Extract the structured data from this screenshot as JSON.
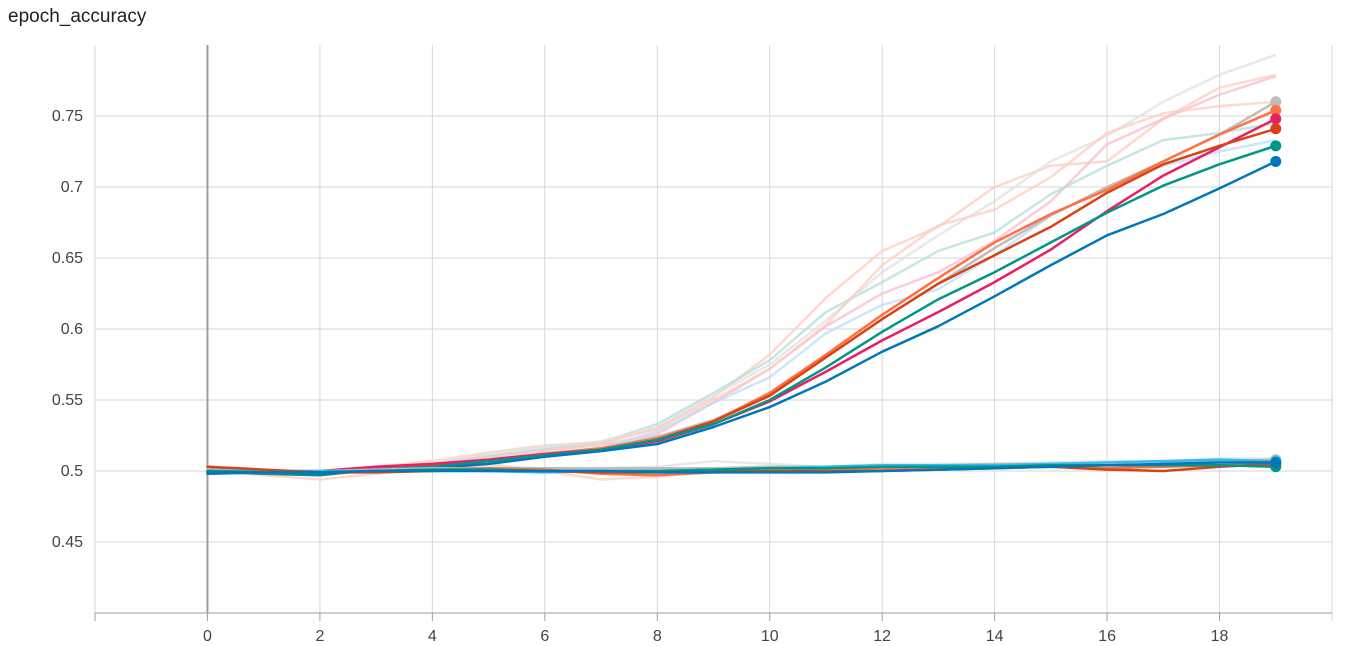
{
  "title": "epoch_accuracy",
  "chart_data": {
    "type": "line",
    "title": "epoch_accuracy",
    "xlabel": "",
    "ylabel": "",
    "xlim": [
      -2.0,
      20.0
    ],
    "ylim": [
      0.4,
      0.8
    ],
    "grid": true,
    "x_ticks": [
      0,
      2,
      4,
      6,
      8,
      10,
      12,
      14,
      16,
      18
    ],
    "x_tick_labels": [
      "0",
      "2",
      "4",
      "6",
      "8",
      "10",
      "12",
      "14",
      "16",
      "18"
    ],
    "y_ticks": [
      0.45,
      0.5,
      0.55,
      0.6,
      0.65,
      0.7,
      0.75
    ],
    "y_tick_labels": [
      "0.45",
      "0.5",
      "0.55",
      "0.6",
      "0.65",
      "0.7",
      "0.75"
    ],
    "x": [
      0,
      1,
      2,
      3,
      4,
      5,
      6,
      7,
      8,
      9,
      10,
      11,
      12,
      13,
      14,
      15,
      16,
      17,
      18,
      19
    ],
    "raw_series": [
      {
        "color": "#ffccbc",
        "values": [
          0.5,
          0.498,
          0.499,
          0.503,
          0.507,
          0.513,
          0.518,
          0.52,
          0.53,
          0.552,
          0.582,
          0.622,
          0.655,
          0.672,
          0.7,
          0.715,
          0.718,
          0.748,
          0.77,
          0.779
        ]
      },
      {
        "color": "#f8bbd0",
        "values": [
          0.499,
          0.498,
          0.5,
          0.503,
          0.505,
          0.51,
          0.515,
          0.518,
          0.526,
          0.548,
          0.572,
          0.602,
          0.625,
          0.64,
          0.662,
          0.69,
          0.73,
          0.748,
          0.765,
          0.778
        ]
      },
      {
        "color": "#b2dfdb",
        "values": [
          0.5,
          0.498,
          0.497,
          0.502,
          0.505,
          0.511,
          0.516,
          0.52,
          0.533,
          0.555,
          0.578,
          0.612,
          0.633,
          0.655,
          0.668,
          0.695,
          0.715,
          0.733,
          0.738,
          0.745
        ]
      },
      {
        "color": "#bbdefb",
        "values": [
          0.498,
          0.499,
          0.498,
          0.502,
          0.503,
          0.508,
          0.513,
          0.516,
          0.528,
          0.548,
          0.566,
          0.597,
          0.617,
          0.628,
          0.652,
          0.68,
          0.7,
          0.715,
          0.725,
          0.733
        ]
      },
      {
        "color": "#e0e0e0",
        "values": [
          0.501,
          0.499,
          0.5,
          0.501,
          0.506,
          0.512,
          0.517,
          0.521,
          0.531,
          0.553,
          0.575,
          0.606,
          0.64,
          0.666,
          0.69,
          0.718,
          0.736,
          0.76,
          0.779,
          0.793
        ]
      },
      {
        "color": "#ffccbc",
        "values": [
          0.502,
          0.499,
          0.498,
          0.502,
          0.505,
          0.509,
          0.514,
          0.519,
          0.53,
          0.55,
          0.572,
          0.603,
          0.645,
          0.673,
          0.684,
          0.707,
          0.738,
          0.752,
          0.757,
          0.76
        ]
      },
      {
        "color": "#ffccbc",
        "values": [
          0.5,
          0.497,
          0.494,
          0.498,
          0.502,
          0.505,
          0.5,
          0.494,
          0.496,
          0.5,
          0.503,
          0.503,
          0.504,
          0.504,
          0.505,
          0.505,
          0.505,
          0.504,
          0.506,
          0.506
        ]
      },
      {
        "color": "#e0e0e0",
        "values": [
          0.501,
          0.5,
          0.499,
          0.501,
          0.503,
          0.503,
          0.502,
          0.502,
          0.503,
          0.507,
          0.505,
          0.503,
          0.505,
          0.505,
          0.505,
          0.506,
          0.507,
          0.507,
          0.509,
          0.509
        ]
      }
    ],
    "series": [
      {
        "color": "#bdbdbd",
        "values": [
          0.5,
          0.499,
          0.499,
          0.502,
          0.504,
          0.508,
          0.512,
          0.516,
          0.524,
          0.536,
          0.553,
          0.58,
          0.607,
          0.632,
          0.657,
          0.68,
          0.7,
          0.718,
          0.737,
          0.76
        ]
      },
      {
        "color": "#ff7043",
        "values": [
          0.5,
          0.499,
          0.498,
          0.502,
          0.504,
          0.507,
          0.512,
          0.516,
          0.523,
          0.535,
          0.555,
          0.582,
          0.61,
          0.636,
          0.661,
          0.681,
          0.698,
          0.718,
          0.737,
          0.754
        ]
      },
      {
        "color": "#e91e63",
        "values": [
          0.499,
          0.499,
          0.5,
          0.503,
          0.505,
          0.508,
          0.512,
          0.515,
          0.521,
          0.533,
          0.549,
          0.57,
          0.592,
          0.612,
          0.633,
          0.656,
          0.683,
          0.708,
          0.728,
          0.748
        ]
      },
      {
        "color": "#d84315",
        "values": [
          0.503,
          0.5,
          0.498,
          0.501,
          0.503,
          0.507,
          0.511,
          0.515,
          0.522,
          0.535,
          0.553,
          0.58,
          0.607,
          0.632,
          0.652,
          0.672,
          0.696,
          0.716,
          0.729,
          0.741
        ]
      },
      {
        "color": "#009688",
        "values": [
          0.5,
          0.498,
          0.497,
          0.501,
          0.503,
          0.507,
          0.511,
          0.515,
          0.522,
          0.533,
          0.55,
          0.573,
          0.598,
          0.621,
          0.64,
          0.661,
          0.682,
          0.701,
          0.716,
          0.729
        ]
      },
      {
        "color": "#0077bb",
        "values": [
          0.498,
          0.499,
          0.498,
          0.501,
          0.502,
          0.505,
          0.51,
          0.514,
          0.519,
          0.531,
          0.545,
          0.563,
          0.584,
          0.602,
          0.623,
          0.645,
          0.666,
          0.681,
          0.699,
          0.718
        ]
      },
      {
        "color": "#bdbdbd",
        "values": [
          0.501,
          0.5,
          0.5,
          0.501,
          0.502,
          0.502,
          0.502,
          0.502,
          0.502,
          0.502,
          0.503,
          0.503,
          0.504,
          0.504,
          0.505,
          0.505,
          0.506,
          0.507,
          0.507,
          0.508
        ]
      },
      {
        "color": "#33bbee",
        "values": [
          0.5,
          0.5,
          0.5,
          0.5,
          0.501,
          0.5,
          0.499,
          0.5,
          0.5,
          0.501,
          0.502,
          0.503,
          0.504,
          0.504,
          0.504,
          0.505,
          0.506,
          0.507,
          0.508,
          0.507
        ]
      },
      {
        "color": "#ff7043",
        "values": [
          0.5,
          0.499,
          0.499,
          0.5,
          0.501,
          0.502,
          0.501,
          0.498,
          0.497,
          0.499,
          0.5,
          0.5,
          0.502,
          0.502,
          0.503,
          0.503,
          0.502,
          0.503,
          0.504,
          0.505
        ]
      },
      {
        "color": "#d84315",
        "values": [
          0.503,
          0.501,
          0.499,
          0.499,
          0.5,
          0.501,
          0.5,
          0.499,
          0.499,
          0.5,
          0.5,
          0.5,
          0.5,
          0.501,
          0.502,
          0.503,
          0.501,
          0.5,
          0.503,
          0.505
        ]
      },
      {
        "color": "#009688",
        "values": [
          0.5,
          0.499,
          0.499,
          0.5,
          0.501,
          0.501,
          0.5,
          0.5,
          0.5,
          0.501,
          0.502,
          0.502,
          0.503,
          0.503,
          0.503,
          0.504,
          0.504,
          0.504,
          0.504,
          0.503
        ]
      },
      {
        "color": "#0077bb",
        "values": [
          0.499,
          0.499,
          0.499,
          0.5,
          0.5,
          0.5,
          0.5,
          0.5,
          0.499,
          0.499,
          0.499,
          0.499,
          0.5,
          0.501,
          0.502,
          0.503,
          0.504,
          0.505,
          0.506,
          0.506
        ]
      }
    ],
    "colors": {
      "grid": "#d6d6d6",
      "axis": "#9e9e9e",
      "zero_line": "#9e9e9e",
      "tick_text": "#444444"
    }
  }
}
